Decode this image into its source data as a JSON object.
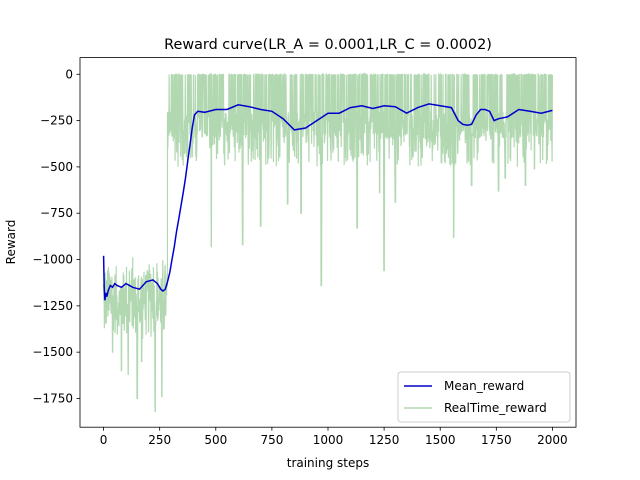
{
  "chart_data": {
    "type": "line",
    "title": "Reward curve(LR_A = 0.0001,LR_C = 0.0002)",
    "xlabel": "training steps",
    "ylabel": "Reward",
    "xlim": [
      -105,
      2105
    ],
    "ylim": [
      -1905,
      90
    ],
    "xticks": [
      0,
      250,
      500,
      750,
      1000,
      1250,
      1500,
      1750,
      2000
    ],
    "yticks": [
      0,
      -250,
      -500,
      -750,
      -1000,
      -1250,
      -1500,
      -1750
    ],
    "xtick_labels": [
      "0",
      "250",
      "500",
      "750",
      "1000",
      "1250",
      "1500",
      "1750",
      "2000"
    ],
    "ytick_labels": [
      "0",
      "−250",
      "−500",
      "−750",
      "−1000",
      "−1250",
      "−1500",
      "−1750"
    ],
    "grid": false,
    "legend_position": "lower-right",
    "series": [
      {
        "name": "Mean_reward",
        "color": "#0000cc",
        "x": [
          0,
          3,
          6,
          10,
          15,
          20,
          30,
          40,
          50,
          60,
          80,
          100,
          130,
          160,
          190,
          220,
          240,
          255,
          265,
          275,
          285,
          295,
          305,
          315,
          325,
          335,
          345,
          355,
          365,
          375,
          385,
          395,
          405,
          420,
          450,
          500,
          550,
          600,
          650,
          700,
          750,
          800,
          850,
          900,
          950,
          1000,
          1050,
          1100,
          1150,
          1200,
          1250,
          1300,
          1350,
          1400,
          1450,
          1500,
          1550,
          1580,
          1600,
          1620,
          1640,
          1660,
          1680,
          1700,
          1720,
          1740,
          1760,
          1780,
          1800,
          1850,
          1900,
          1950,
          2000
        ],
        "y": [
          -980,
          -1150,
          -1220,
          -1180,
          -1200,
          -1170,
          -1140,
          -1150,
          -1130,
          -1140,
          -1150,
          -1130,
          -1150,
          -1160,
          -1120,
          -1110,
          -1130,
          -1160,
          -1170,
          -1160,
          -1120,
          -1070,
          -1000,
          -930,
          -850,
          -780,
          -710,
          -640,
          -560,
          -470,
          -380,
          -290,
          -220,
          -200,
          -205,
          -190,
          -190,
          -165,
          -175,
          -190,
          -200,
          -240,
          -300,
          -290,
          -250,
          -210,
          -210,
          -180,
          -170,
          -185,
          -170,
          -175,
          -210,
          -180,
          -160,
          -170,
          -180,
          -250,
          -270,
          -275,
          -270,
          -220,
          -190,
          -190,
          -200,
          -250,
          -240,
          -235,
          -230,
          -190,
          -200,
          -210,
          -195
        ]
      },
      {
        "name": "RealTime_reward",
        "color": "#b2d8b2",
        "pattern": [
          {
            "x_range": [
              0,
              285
            ],
            "base": -1150,
            "spread": 250,
            "dips": [
              [
                40,
                -1500
              ],
              [
                80,
                -1600
              ],
              [
                110,
                -1620
              ],
              [
                150,
                -1750
              ],
              [
                230,
                -1820
              ],
              [
                260,
                -1740
              ],
              [
                170,
                -1550
              ]
            ]
          },
          {
            "x_range": [
              285,
              2000
            ],
            "base": -200,
            "spread": 250,
            "dips": [
              [
                300,
                -300
              ],
              [
                480,
                -930
              ],
              [
                620,
                -920
              ],
              [
                700,
                -820
              ],
              [
                820,
                -700
              ],
              [
                880,
                -750
              ],
              [
                970,
                -1140
              ],
              [
                1130,
                -830
              ],
              [
                1230,
                -640
              ],
              [
                1250,
                -1060
              ],
              [
                1300,
                -690
              ],
              [
                1560,
                -880
              ],
              [
                1640,
                -600
              ],
              [
                1760,
                -630
              ],
              [
                1790,
                -560
              ],
              [
                1880,
                -600
              ],
              [
                1920,
                -510
              ],
              [
                1980,
                -380
              ]
            ]
          }
        ]
      }
    ]
  }
}
